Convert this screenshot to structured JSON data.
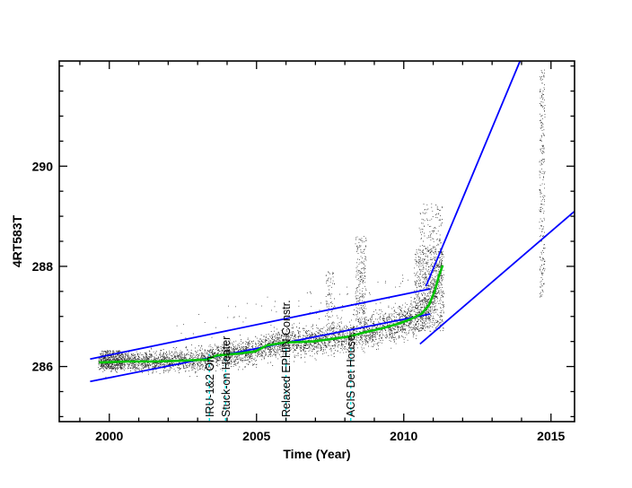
{
  "figure": {
    "background": "#ffffff"
  },
  "chart_data": {
    "type": "scatter",
    "title": "",
    "xlabel": "Time (Year)",
    "ylabel": "4RT583T",
    "xlim": [
      1998.3,
      2015.8
    ],
    "ylim": [
      284.9,
      292.1
    ],
    "xticks": [
      2000,
      2005,
      2010,
      2015
    ],
    "x_minor_step": 1,
    "yticks": [
      286,
      288,
      290
    ],
    "y_minor_step": 0.5,
    "grid": false,
    "legend": null,
    "colors": {
      "scatter": "#000000",
      "mean_line": "#00c300",
      "limit_lines": "#0000ff",
      "annotation_lines": "#00e0e0",
      "annotation_text": "#000000",
      "axes": "#000000",
      "background": "#ffffff"
    },
    "mean_line": {
      "label": "running mean",
      "points": [
        [
          1999.65,
          286.08
        ],
        [
          2000.6,
          286.1
        ],
        [
          2001.6,
          286.1
        ],
        [
          2002.6,
          286.12
        ],
        [
          2003.3,
          286.14
        ],
        [
          2003.65,
          286.22
        ],
        [
          2004.4,
          286.26
        ],
        [
          2004.95,
          286.3
        ],
        [
          2005.35,
          286.42
        ],
        [
          2005.95,
          286.48
        ],
        [
          2006.9,
          286.5
        ],
        [
          2007.55,
          286.55
        ],
        [
          2008.15,
          286.6
        ],
        [
          2008.65,
          286.68
        ],
        [
          2009.25,
          286.76
        ],
        [
          2009.85,
          286.86
        ],
        [
          2010.25,
          286.95
        ],
        [
          2010.6,
          287.05
        ],
        [
          2010.85,
          287.22
        ],
        [
          2011.05,
          287.5
        ],
        [
          2011.2,
          287.82
        ],
        [
          2011.32,
          288.02
        ]
      ]
    },
    "limit_lines": [
      {
        "label": "upper envelope",
        "points": [
          [
            1999.35,
            286.15
          ],
          [
            2010.9,
            287.55
          ]
        ]
      },
      {
        "label": "lower envelope",
        "points": [
          [
            1999.35,
            285.7
          ],
          [
            2010.9,
            287.05
          ]
        ]
      },
      {
        "label": "upper projection",
        "points": [
          [
            2010.75,
            287.6
          ],
          [
            2013.95,
            292.1
          ]
        ]
      },
      {
        "label": "lower projection",
        "points": [
          [
            2010.55,
            286.45
          ],
          [
            2015.8,
            289.1
          ]
        ]
      }
    ],
    "annotations": [
      {
        "label": "IRU-1&2 On.",
        "x": 2003.4,
        "line_top": 286.25
      },
      {
        "label": "Stuck-on Heater",
        "x": 2003.95,
        "line_top": 286.25
      },
      {
        "label": "Relaxed EPHIN Constr.",
        "x": 2006.0,
        "line_top": 286.4
      },
      {
        "label": "ACIS Det House...",
        "x": 2008.2,
        "line_top": 286.4
      }
    ],
    "scatter_band": {
      "x_min": 1999.62,
      "x_max": 2011.3,
      "count": 4500,
      "half_width_base": 0.28,
      "half_width_growth": 0.03,
      "column_step": 0.012
    },
    "clusters": [
      {
        "x0": 1999.7,
        "x1": 2000.45,
        "y0": 285.95,
        "y1": 286.32,
        "count": 350
      },
      {
        "x0": 2007.35,
        "x1": 2007.65,
        "y0": 286.55,
        "y1": 287.9,
        "count": 90
      },
      {
        "x0": 2008.35,
        "x1": 2008.72,
        "y0": 286.8,
        "y1": 288.6,
        "count": 220
      },
      {
        "x0": 2010.35,
        "x1": 2011.35,
        "y0": 286.7,
        "y1": 288.35,
        "count": 700
      },
      {
        "x0": 2010.5,
        "x1": 2011.3,
        "y0": 288.3,
        "y1": 289.25,
        "count": 120
      },
      {
        "x0": 2014.6,
        "x1": 2014.78,
        "y0": 287.35,
        "y1": 291.95,
        "count": 250
      },
      {
        "x0": 2002.0,
        "x1": 2011.3,
        "y0": 0.35,
        "y1": 1.0,
        "count": 80,
        "relative": true
      }
    ]
  }
}
